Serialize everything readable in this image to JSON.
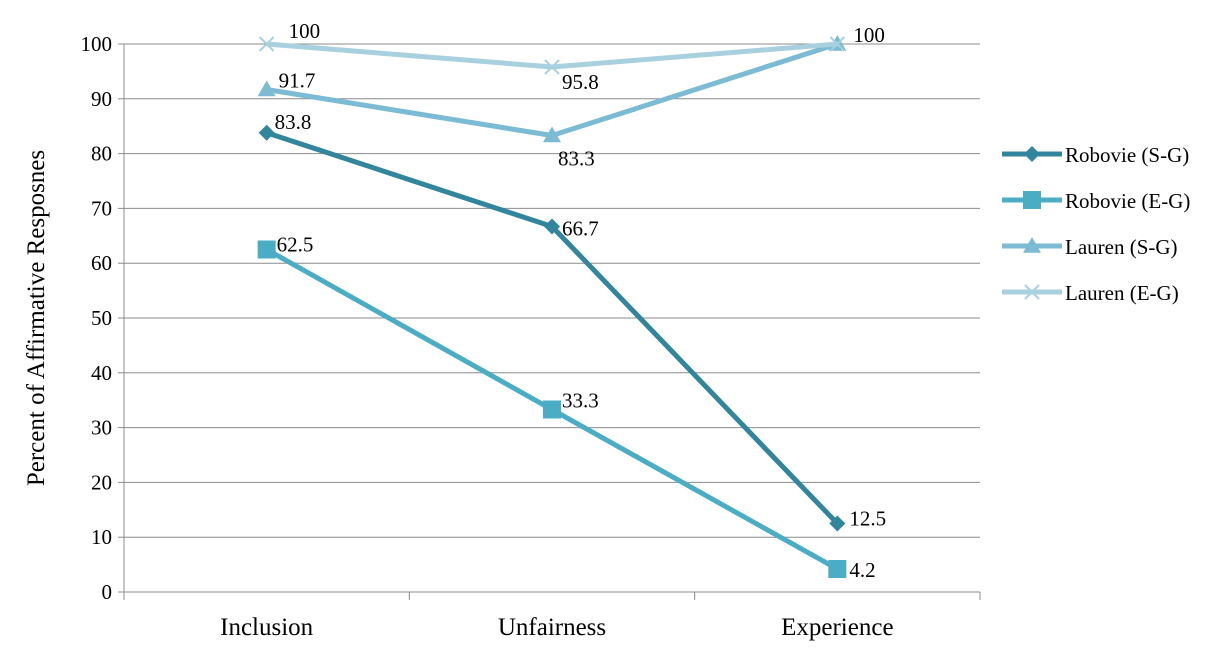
{
  "chart_data": {
    "type": "line",
    "title": "",
    "xlabel": "",
    "ylabel": "Percent of Affirmative Resposnes",
    "categories": [
      "Inclusion",
      "Unfairness",
      "Experience"
    ],
    "ylim": [
      0,
      100
    ],
    "yticks": [
      0,
      10,
      20,
      30,
      40,
      50,
      60,
      70,
      80,
      90,
      100
    ],
    "grid": true,
    "legend_position": "right",
    "series": [
      {
        "name": "Robovie (S-G)",
        "values": [
          83.8,
          66.7,
          12.5
        ],
        "labels": [
          "83.8",
          "66.7",
          "12.5"
        ],
        "color": "#31859C",
        "marker": "diamond"
      },
      {
        "name": "Robovie (E-G)",
        "values": [
          62.5,
          33.3,
          4.2
        ],
        "labels": [
          "62.5",
          "33.3",
          "4.2"
        ],
        "color": "#4BACC6",
        "marker": "square"
      },
      {
        "name": "Lauren (S-G)",
        "values": [
          91.7,
          83.3,
          100
        ],
        "labels": [
          "91.7",
          "83.3",
          ""
        ],
        "color": "#7BBBD3",
        "marker": "triangle"
      },
      {
        "name": "Lauren (E-G)",
        "values": [
          100,
          95.8,
          100
        ],
        "labels": [
          "100",
          "95.8",
          "100"
        ],
        "color": "#A8D0DE",
        "marker": "x"
      }
    ]
  }
}
